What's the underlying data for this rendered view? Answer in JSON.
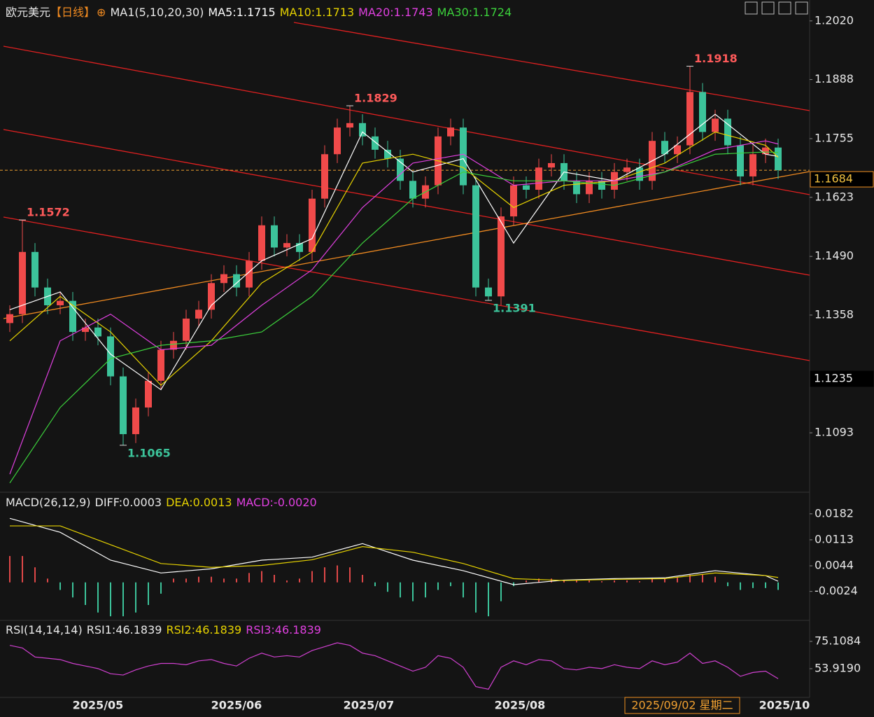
{
  "chart_data": {
    "type": "candlestick",
    "title": "欧元美元",
    "period": "【日线】",
    "ma_header": "MA1(5,10,20,30)",
    "ma_index": [
      0,
      4,
      8,
      12,
      16,
      20,
      24,
      28,
      32,
      36,
      40,
      44,
      48,
      52,
      56,
      60,
      61
    ],
    "ma_series": [
      {
        "label": "MA5:1.1715",
        "color": "#ffffff",
        "values": [
          1.137,
          1.141,
          1.127,
          1.119,
          1.138,
          1.148,
          1.153,
          1.177,
          1.168,
          1.171,
          1.152,
          1.168,
          1.166,
          1.172,
          1.181,
          1.172,
          1.1715
        ]
      },
      {
        "label": "MA10:1.1713",
        "color": "#e6d200",
        "values": [
          1.13,
          1.14,
          1.132,
          1.12,
          1.13,
          1.143,
          1.15,
          1.17,
          1.172,
          1.169,
          1.16,
          1.165,
          1.166,
          1.17,
          1.177,
          1.174,
          1.1713
        ]
      },
      {
        "label": "MA20:1.1743",
        "color": "#e040e0",
        "values": [
          1.1,
          1.13,
          1.136,
          1.128,
          1.129,
          1.138,
          1.146,
          1.16,
          1.17,
          1.172,
          1.165,
          1.166,
          1.166,
          1.168,
          1.173,
          1.175,
          1.1743
        ]
      },
      {
        "label": "MA30:1.1724",
        "color": "#3cd23c",
        "values": [
          1.098,
          1.115,
          1.126,
          1.129,
          1.13,
          1.132,
          1.14,
          1.152,
          1.162,
          1.168,
          1.166,
          1.166,
          1.165,
          1.168,
          1.172,
          1.1725,
          1.1724
        ]
      }
    ],
    "open": [
      1.134,
      1.136,
      1.15,
      1.142,
      1.138,
      1.139,
      1.132,
      1.133,
      1.131,
      1.122,
      1.109,
      1.115,
      1.121,
      1.128,
      1.13,
      1.135,
      1.137,
      1.143,
      1.145,
      1.142,
      1.148,
      1.156,
      1.151,
      1.152,
      1.15,
      1.162,
      1.172,
      1.178,
      1.179,
      1.176,
      1.173,
      1.171,
      1.166,
      1.162,
      1.165,
      1.176,
      1.178,
      1.165,
      1.142,
      1.14,
      1.158,
      1.165,
      1.164,
      1.169,
      1.17,
      1.166,
      1.163,
      1.166,
      1.164,
      1.168,
      1.169,
      1.166,
      1.175,
      1.172,
      1.174,
      1.186,
      1.177,
      1.18,
      1.174,
      1.167,
      1.172,
      1.1735
    ],
    "high": [
      1.138,
      1.1572,
      1.152,
      1.144,
      1.141,
      1.141,
      1.135,
      1.135,
      1.133,
      1.124,
      1.117,
      1.123,
      1.13,
      1.132,
      1.137,
      1.139,
      1.145,
      1.147,
      1.147,
      1.15,
      1.158,
      1.158,
      1.154,
      1.154,
      1.164,
      1.174,
      1.18,
      1.1829,
      1.181,
      1.178,
      1.175,
      1.173,
      1.168,
      1.167,
      1.178,
      1.18,
      1.18,
      1.167,
      1.144,
      1.16,
      1.167,
      1.167,
      1.171,
      1.172,
      1.172,
      1.168,
      1.168,
      1.168,
      1.17,
      1.171,
      1.171,
      1.177,
      1.177,
      1.176,
      1.1918,
      1.188,
      1.182,
      1.182,
      1.176,
      1.174,
      1.1755,
      1.1755
    ],
    "low": [
      1.132,
      1.134,
      1.14,
      1.136,
      1.136,
      1.13,
      1.13,
      1.129,
      1.12,
      1.1065,
      1.107,
      1.113,
      1.119,
      1.126,
      1.128,
      1.133,
      1.135,
      1.141,
      1.14,
      1.14,
      1.146,
      1.149,
      1.149,
      1.148,
      1.148,
      1.16,
      1.17,
      1.176,
      1.174,
      1.171,
      1.169,
      1.164,
      1.16,
      1.16,
      1.163,
      1.174,
      1.163,
      1.14,
      1.1391,
      1.138,
      1.156,
      1.162,
      1.162,
      1.167,
      1.164,
      1.161,
      1.161,
      1.162,
      1.162,
      1.166,
      1.164,
      1.164,
      1.17,
      1.17,
      1.172,
      1.175,
      1.175,
      1.172,
      1.165,
      1.165,
      1.17,
      1.1664
    ],
    "close": [
      1.136,
      1.15,
      1.142,
      1.138,
      1.139,
      1.132,
      1.133,
      1.131,
      1.122,
      1.109,
      1.115,
      1.121,
      1.128,
      1.13,
      1.135,
      1.137,
      1.143,
      1.145,
      1.142,
      1.148,
      1.156,
      1.151,
      1.152,
      1.15,
      1.162,
      1.172,
      1.178,
      1.179,
      1.176,
      1.173,
      1.171,
      1.166,
      1.162,
      1.165,
      1.176,
      1.178,
      1.165,
      1.142,
      1.14,
      1.158,
      1.165,
      1.164,
      1.169,
      1.17,
      1.166,
      1.163,
      1.166,
      1.164,
      1.168,
      1.169,
      1.166,
      1.175,
      1.172,
      1.174,
      1.186,
      1.177,
      1.18,
      1.174,
      1.167,
      1.172,
      1.1735,
      1.1684
    ],
    "up_color": "#f04a4a",
    "down_color": "#3cc39a",
    "ylim": [
      1.0964,
      1.2067
    ],
    "yticks": [
      {
        "value": 1.202,
        "label": "1.2020"
      },
      1.1888,
      1.1755,
      1.1623,
      {
        "value": 1.149,
        "label": "1.1490"
      },
      1.1358,
      1.1093
    ],
    "price_tags": [
      1.1684,
      1.1235
    ],
    "annotations": [
      1.1572,
      1.1065,
      1.1829,
      1.1391,
      1.1918
    ],
    "xticks": [
      {
        "value": 7,
        "label": "2025/05"
      },
      {
        "value": 18,
        "label": "2025/06"
      },
      {
        "value": 28.5,
        "label": "2025/07"
      },
      {
        "value": 40.5,
        "label": "2025/08"
      },
      {
        "value": 61.5,
        "label": "2025/10"
      }
    ],
    "cursor_label": "2025/09/02 星期二",
    "macd": {
      "header": [
        {
          "text": "MACD(26,12,9)",
          "color": "#e8e8e8"
        },
        {
          "text": "DIFF:0.0003",
          "color": "#e8e8e8"
        },
        {
          "text": "DEA:0.0013",
          "color": "#e6d200"
        },
        {
          "text": "MACD:-0.0020",
          "color": "#e040e0"
        }
      ],
      "ylim": [
        -0.0099,
        0.023
      ],
      "yticks": [
        0.0182,
        0.0113,
        0.0044,
        -0.0024
      ],
      "hist": [
        0.007,
        0.007,
        0.004,
        0.001,
        -0.002,
        -0.004,
        -0.006,
        -0.008,
        -0.009,
        -0.009,
        -0.008,
        -0.006,
        -0.003,
        0.001,
        0.001,
        0.0015,
        0.0015,
        0.001,
        0.001,
        0.0025,
        0.003,
        0.002,
        0.0005,
        0.001,
        0.003,
        0.004,
        0.0045,
        0.004,
        0.002,
        -0.001,
        -0.0025,
        -0.004,
        -0.005,
        -0.004,
        -0.002,
        -0.001,
        -0.004,
        -0.008,
        -0.009,
        -0.005,
        -0.001,
        0.0005,
        0.001,
        0.001,
        0.0005,
        0.0005,
        0.0005,
        0.0003,
        0.0005,
        0.0005,
        0.0003,
        0.001,
        0.001,
        0.0012,
        0.002,
        0.002,
        0.0015,
        -0.001,
        -0.002,
        -0.0015,
        -0.0015,
        -0.002
      ],
      "diff": [
        0.017,
        0.0133,
        0.0059,
        0.0025,
        0.0036,
        0.0059,
        0.0067,
        0.0103,
        0.0059,
        0.0031,
        -0.0006,
        0.0006,
        0.001,
        0.0012,
        0.0031,
        0.0018,
        0.0003
      ],
      "dea": [
        0.015,
        0.015,
        0.01,
        0.005,
        0.004,
        0.0045,
        0.006,
        0.0095,
        0.008,
        0.005,
        0.001,
        0.0005,
        0.0008,
        0.001,
        0.0025,
        0.0018,
        0.0013
      ]
    },
    "rsi": {
      "header": [
        {
          "text": "RSI(14,14,14)",
          "color": "#e8e8e8"
        },
        {
          "text": "RSI1:46.1839",
          "color": "#e8e8e8"
        },
        {
          "text": "RSI2:46.1839",
          "color": "#e6d200"
        },
        {
          "text": "RSI3:46.1839",
          "color": "#e040e0"
        }
      ],
      "ylim": [
        32.19,
        89.23
      ],
      "yticks": [
        75.1084,
        {
          "value": 53.919,
          "label": "53.9190"
        }
      ],
      "color": "#d040d0",
      "values": [
        72,
        70,
        63,
        62,
        61,
        58,
        56,
        54,
        50,
        49,
        53,
        56,
        58,
        58,
        57,
        60,
        61,
        58,
        56,
        62,
        66,
        63,
        64,
        63,
        68,
        71,
        74,
        72,
        66,
        64,
        60,
        56,
        52,
        55,
        64,
        62,
        55,
        40,
        38,
        55,
        60,
        57,
        61,
        60,
        54,
        53,
        55,
        54,
        57,
        55,
        54,
        60,
        57,
        59,
        66,
        58,
        60,
        55,
        48,
        51,
        52,
        46.1839
      ]
    }
  }
}
